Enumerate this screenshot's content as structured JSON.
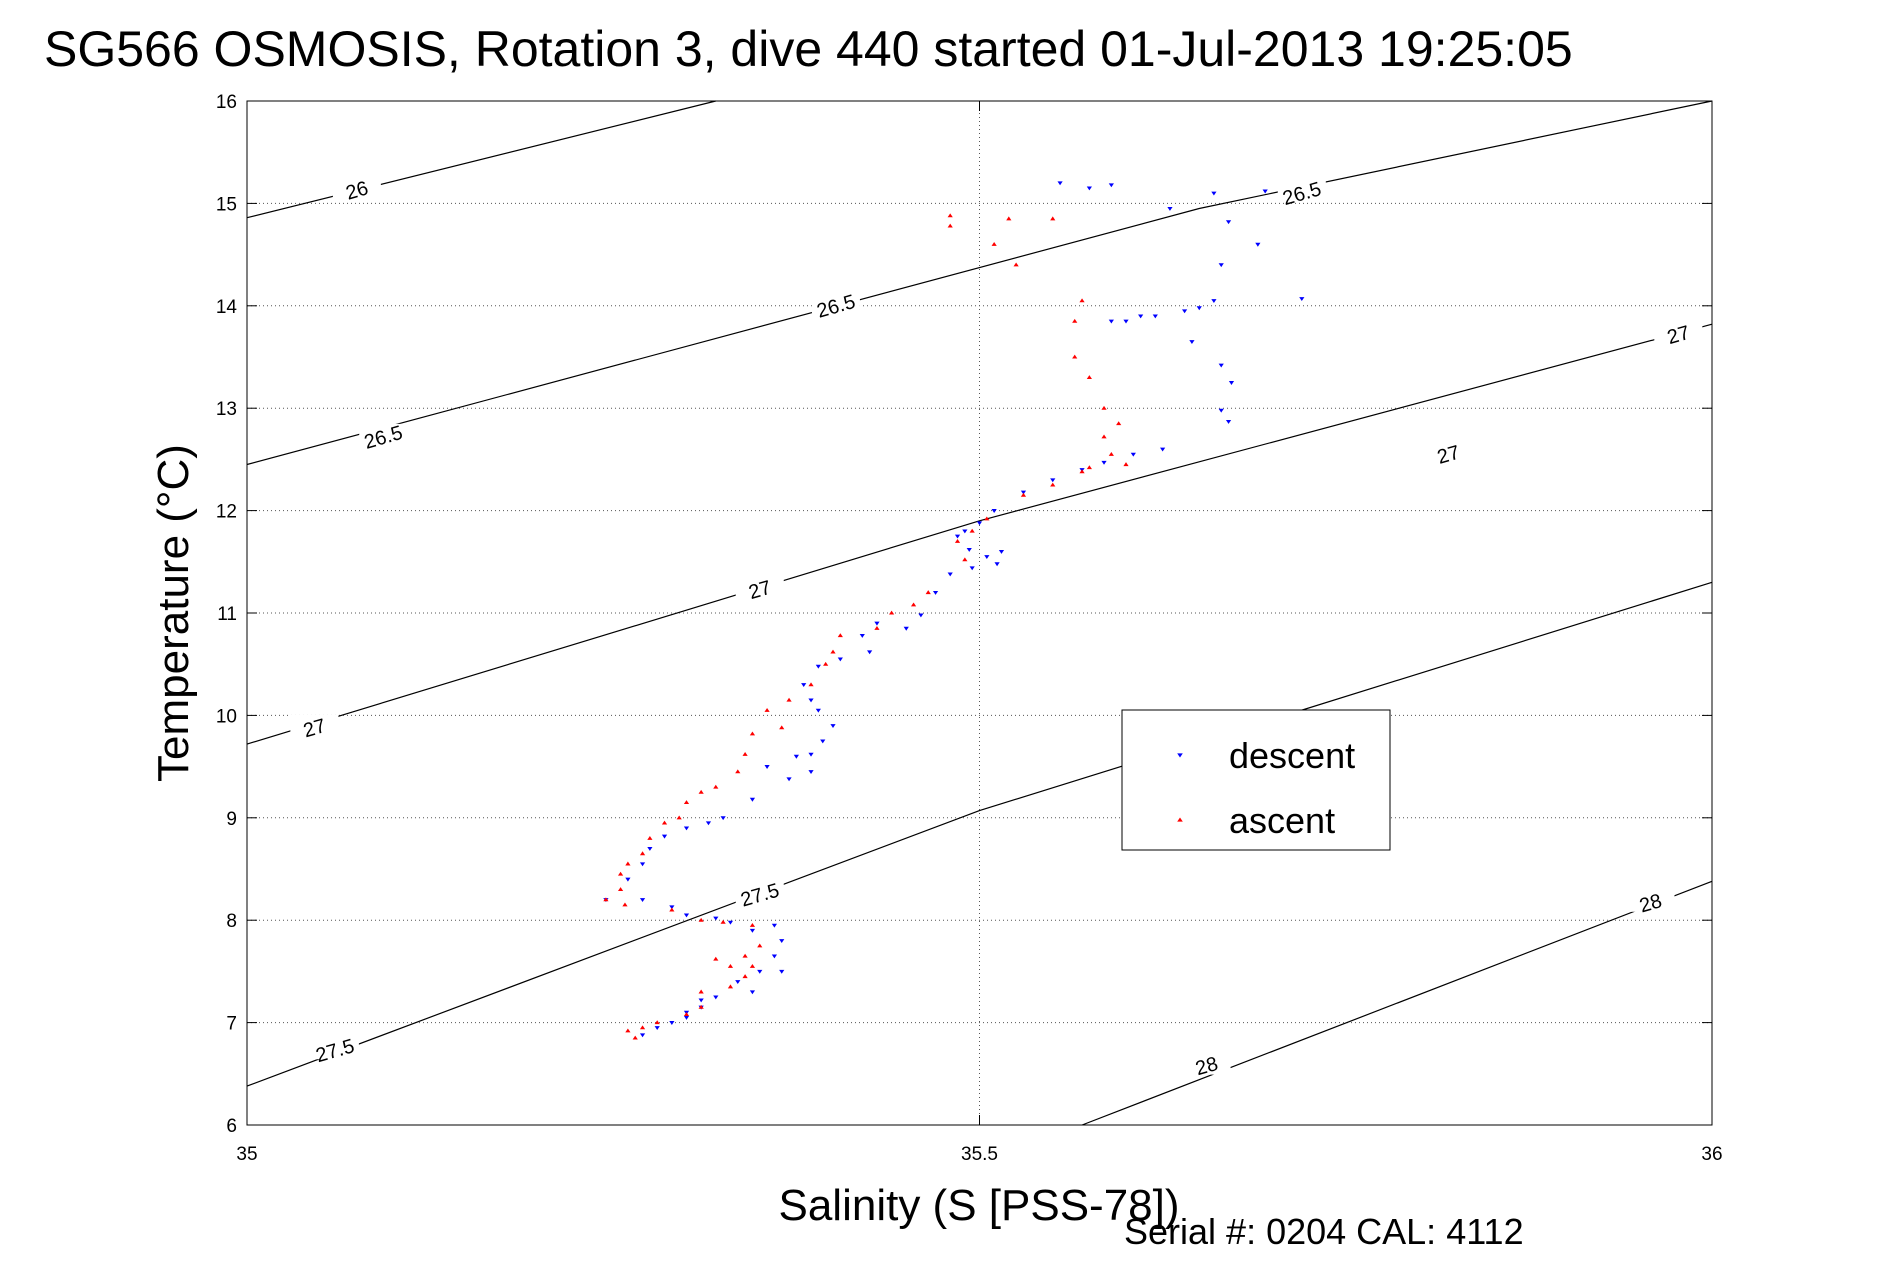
{
  "chart_data": {
    "type": "scatter",
    "title": "SG566 OSMOSIS, Rotation 3, dive 440 started 01-Jul-2013 19:25:05",
    "xlabel": "Salinity (S [PSS-78])",
    "ylabel": "Temperature (°C)",
    "xlim": [
      35,
      36
    ],
    "ylim": [
      6,
      16
    ],
    "xticks": [
      "35",
      "35.5",
      "36"
    ],
    "yticks": [
      "6",
      "7",
      "8",
      "9",
      "10",
      "11",
      "12",
      "13",
      "14",
      "15",
      "16"
    ],
    "grid": "dotted",
    "legend_position": "center-right",
    "footer": "Serial #: 0204  CAL: 4112",
    "contours": [
      {
        "label": "26",
        "points": [
          [
            35,
            14.86
          ],
          [
            35.32,
            16.0
          ]
        ],
        "labels": [
          {
            "x": 35.075,
            "y": 15.13
          }
        ]
      },
      {
        "label": "26.5",
        "points": [
          [
            35,
            12.45
          ],
          [
            35.65,
            14.95
          ],
          [
            36,
            16.0
          ]
        ],
        "labels": [
          {
            "x": 35.093,
            "y": 12.72
          },
          {
            "x": 35.402,
            "y": 14.0
          },
          {
            "x": 35.72,
            "y": 15.1
          }
        ]
      },
      {
        "label": "27",
        "points": [
          [
            35,
            9.72
          ],
          [
            35.5,
            11.9
          ],
          [
            36,
            13.82
          ]
        ],
        "labels": [
          {
            "x": 35.046,
            "y": 9.88
          },
          {
            "x": 35.35,
            "y": 11.23
          },
          {
            "x": 35.82,
            "y": 12.55
          },
          {
            "x": 35.977,
            "y": 13.72
          }
        ]
      },
      {
        "label": "27.5",
        "points": [
          [
            35,
            6.38
          ],
          [
            35.5,
            9.07
          ],
          [
            36,
            11.3
          ]
        ],
        "labels": [
          {
            "x": 35.06,
            "y": 6.73
          },
          {
            "x": 35.35,
            "y": 8.25
          }
        ]
      },
      {
        "label": "28",
        "points": [
          [
            35.57,
            6.0
          ],
          [
            36,
            8.38
          ]
        ],
        "labels": [
          {
            "x": 35.655,
            "y": 6.58
          },
          {
            "x": 35.958,
            "y": 8.17
          }
        ]
      }
    ],
    "series": [
      {
        "name": "descent",
        "color": "#0000ff",
        "marker": "triangle-down",
        "values": [
          [
            35.555,
            15.2
          ],
          [
            35.575,
            15.15
          ],
          [
            35.59,
            15.18
          ],
          [
            35.66,
            15.1
          ],
          [
            35.695,
            15.12
          ],
          [
            35.63,
            14.95
          ],
          [
            35.67,
            14.82
          ],
          [
            35.69,
            14.6
          ],
          [
            35.665,
            14.4
          ],
          [
            35.66,
            14.05
          ],
          [
            35.72,
            14.07
          ],
          [
            35.64,
            13.95
          ],
          [
            35.62,
            13.9
          ],
          [
            35.6,
            13.85
          ],
          [
            35.59,
            13.85
          ],
          [
            35.61,
            13.9
          ],
          [
            35.65,
            13.98
          ],
          [
            35.645,
            13.65
          ],
          [
            35.665,
            13.42
          ],
          [
            35.672,
            13.25
          ],
          [
            35.665,
            12.98
          ],
          [
            35.67,
            12.87
          ],
          [
            35.625,
            12.6
          ],
          [
            35.605,
            12.55
          ],
          [
            35.585,
            12.47
          ],
          [
            35.57,
            12.4
          ],
          [
            35.55,
            12.3
          ],
          [
            35.53,
            12.18
          ],
          [
            35.51,
            12.0
          ],
          [
            35.5,
            11.88
          ],
          [
            35.49,
            11.8
          ],
          [
            35.485,
            11.75
          ],
          [
            35.493,
            11.62
          ],
          [
            35.505,
            11.55
          ],
          [
            35.515,
            11.6
          ],
          [
            35.512,
            11.48
          ],
          [
            35.495,
            11.44
          ],
          [
            35.48,
            11.38
          ],
          [
            35.47,
            11.2
          ],
          [
            35.46,
            10.98
          ],
          [
            35.45,
            10.85
          ],
          [
            35.43,
            10.9
          ],
          [
            35.42,
            10.78
          ],
          [
            35.425,
            10.62
          ],
          [
            35.405,
            10.55
          ],
          [
            35.39,
            10.48
          ],
          [
            35.38,
            10.3
          ],
          [
            35.385,
            10.15
          ],
          [
            35.39,
            10.05
          ],
          [
            35.4,
            9.9
          ],
          [
            35.393,
            9.75
          ],
          [
            35.385,
            9.62
          ],
          [
            35.375,
            9.6
          ],
          [
            35.385,
            9.45
          ],
          [
            35.37,
            9.38
          ],
          [
            35.355,
            9.5
          ],
          [
            35.345,
            9.18
          ],
          [
            35.325,
            9.0
          ],
          [
            35.315,
            8.95
          ],
          [
            35.3,
            8.9
          ],
          [
            35.285,
            8.82
          ],
          [
            35.275,
            8.7
          ],
          [
            35.27,
            8.55
          ],
          [
            35.26,
            8.4
          ],
          [
            35.245,
            8.2
          ],
          [
            35.27,
            8.2
          ],
          [
            35.29,
            8.13
          ],
          [
            35.3,
            8.05
          ],
          [
            35.32,
            8.02
          ],
          [
            35.33,
            7.98
          ],
          [
            35.345,
            7.9
          ],
          [
            35.36,
            7.95
          ],
          [
            35.365,
            7.8
          ],
          [
            35.36,
            7.65
          ],
          [
            35.35,
            7.5
          ],
          [
            35.365,
            7.5
          ],
          [
            35.345,
            7.3
          ],
          [
            35.32,
            7.25
          ],
          [
            35.31,
            7.22
          ],
          [
            35.3,
            7.1
          ],
          [
            35.29,
            7.0
          ],
          [
            35.28,
            6.95
          ],
          [
            35.27,
            6.88
          ],
          [
            35.3,
            7.05
          ],
          [
            35.31,
            7.15
          ],
          [
            35.335,
            7.4
          ]
        ]
      },
      {
        "name": "ascent",
        "color": "#ff0000",
        "marker": "triangle-up",
        "values": [
          [
            35.48,
            14.88
          ],
          [
            35.48,
            14.78
          ],
          [
            35.52,
            14.85
          ],
          [
            35.55,
            14.85
          ],
          [
            35.51,
            14.6
          ],
          [
            35.525,
            14.4
          ],
          [
            35.57,
            14.05
          ],
          [
            35.565,
            13.85
          ],
          [
            35.565,
            13.5
          ],
          [
            35.575,
            13.3
          ],
          [
            35.585,
            13.0
          ],
          [
            35.595,
            12.85
          ],
          [
            35.585,
            12.72
          ],
          [
            35.59,
            12.55
          ],
          [
            35.6,
            12.45
          ],
          [
            35.575,
            12.42
          ],
          [
            35.57,
            12.38
          ],
          [
            35.55,
            12.25
          ],
          [
            35.53,
            12.15
          ],
          [
            35.505,
            11.92
          ],
          [
            35.495,
            11.8
          ],
          [
            35.485,
            11.7
          ],
          [
            35.49,
            11.52
          ],
          [
            35.465,
            11.2
          ],
          [
            35.455,
            11.08
          ],
          [
            35.44,
            11.0
          ],
          [
            35.43,
            10.85
          ],
          [
            35.405,
            10.78
          ],
          [
            35.4,
            10.62
          ],
          [
            35.395,
            10.5
          ],
          [
            35.385,
            10.3
          ],
          [
            35.37,
            10.15
          ],
          [
            35.355,
            10.05
          ],
          [
            35.365,
            9.88
          ],
          [
            35.345,
            9.82
          ],
          [
            35.34,
            9.62
          ],
          [
            35.335,
            9.45
          ],
          [
            35.32,
            9.3
          ],
          [
            35.31,
            9.25
          ],
          [
            35.3,
            9.15
          ],
          [
            35.295,
            9.0
          ],
          [
            35.285,
            8.95
          ],
          [
            35.275,
            8.8
          ],
          [
            35.27,
            8.65
          ],
          [
            35.26,
            8.55
          ],
          [
            35.255,
            8.45
          ],
          [
            35.255,
            8.3
          ],
          [
            35.245,
            8.2
          ],
          [
            35.258,
            8.15
          ],
          [
            35.29,
            8.1
          ],
          [
            35.31,
            8.0
          ],
          [
            35.325,
            7.98
          ],
          [
            35.345,
            7.95
          ],
          [
            35.35,
            7.75
          ],
          [
            35.34,
            7.65
          ],
          [
            35.33,
            7.55
          ],
          [
            35.34,
            7.45
          ],
          [
            35.33,
            7.35
          ],
          [
            35.31,
            7.3
          ],
          [
            35.31,
            7.15
          ],
          [
            35.3,
            7.08
          ],
          [
            35.28,
            7.0
          ],
          [
            35.27,
            6.95
          ],
          [
            35.26,
            6.92
          ],
          [
            35.265,
            6.85
          ],
          [
            35.32,
            7.62
          ],
          [
            35.345,
            7.55
          ]
        ]
      }
    ]
  }
}
